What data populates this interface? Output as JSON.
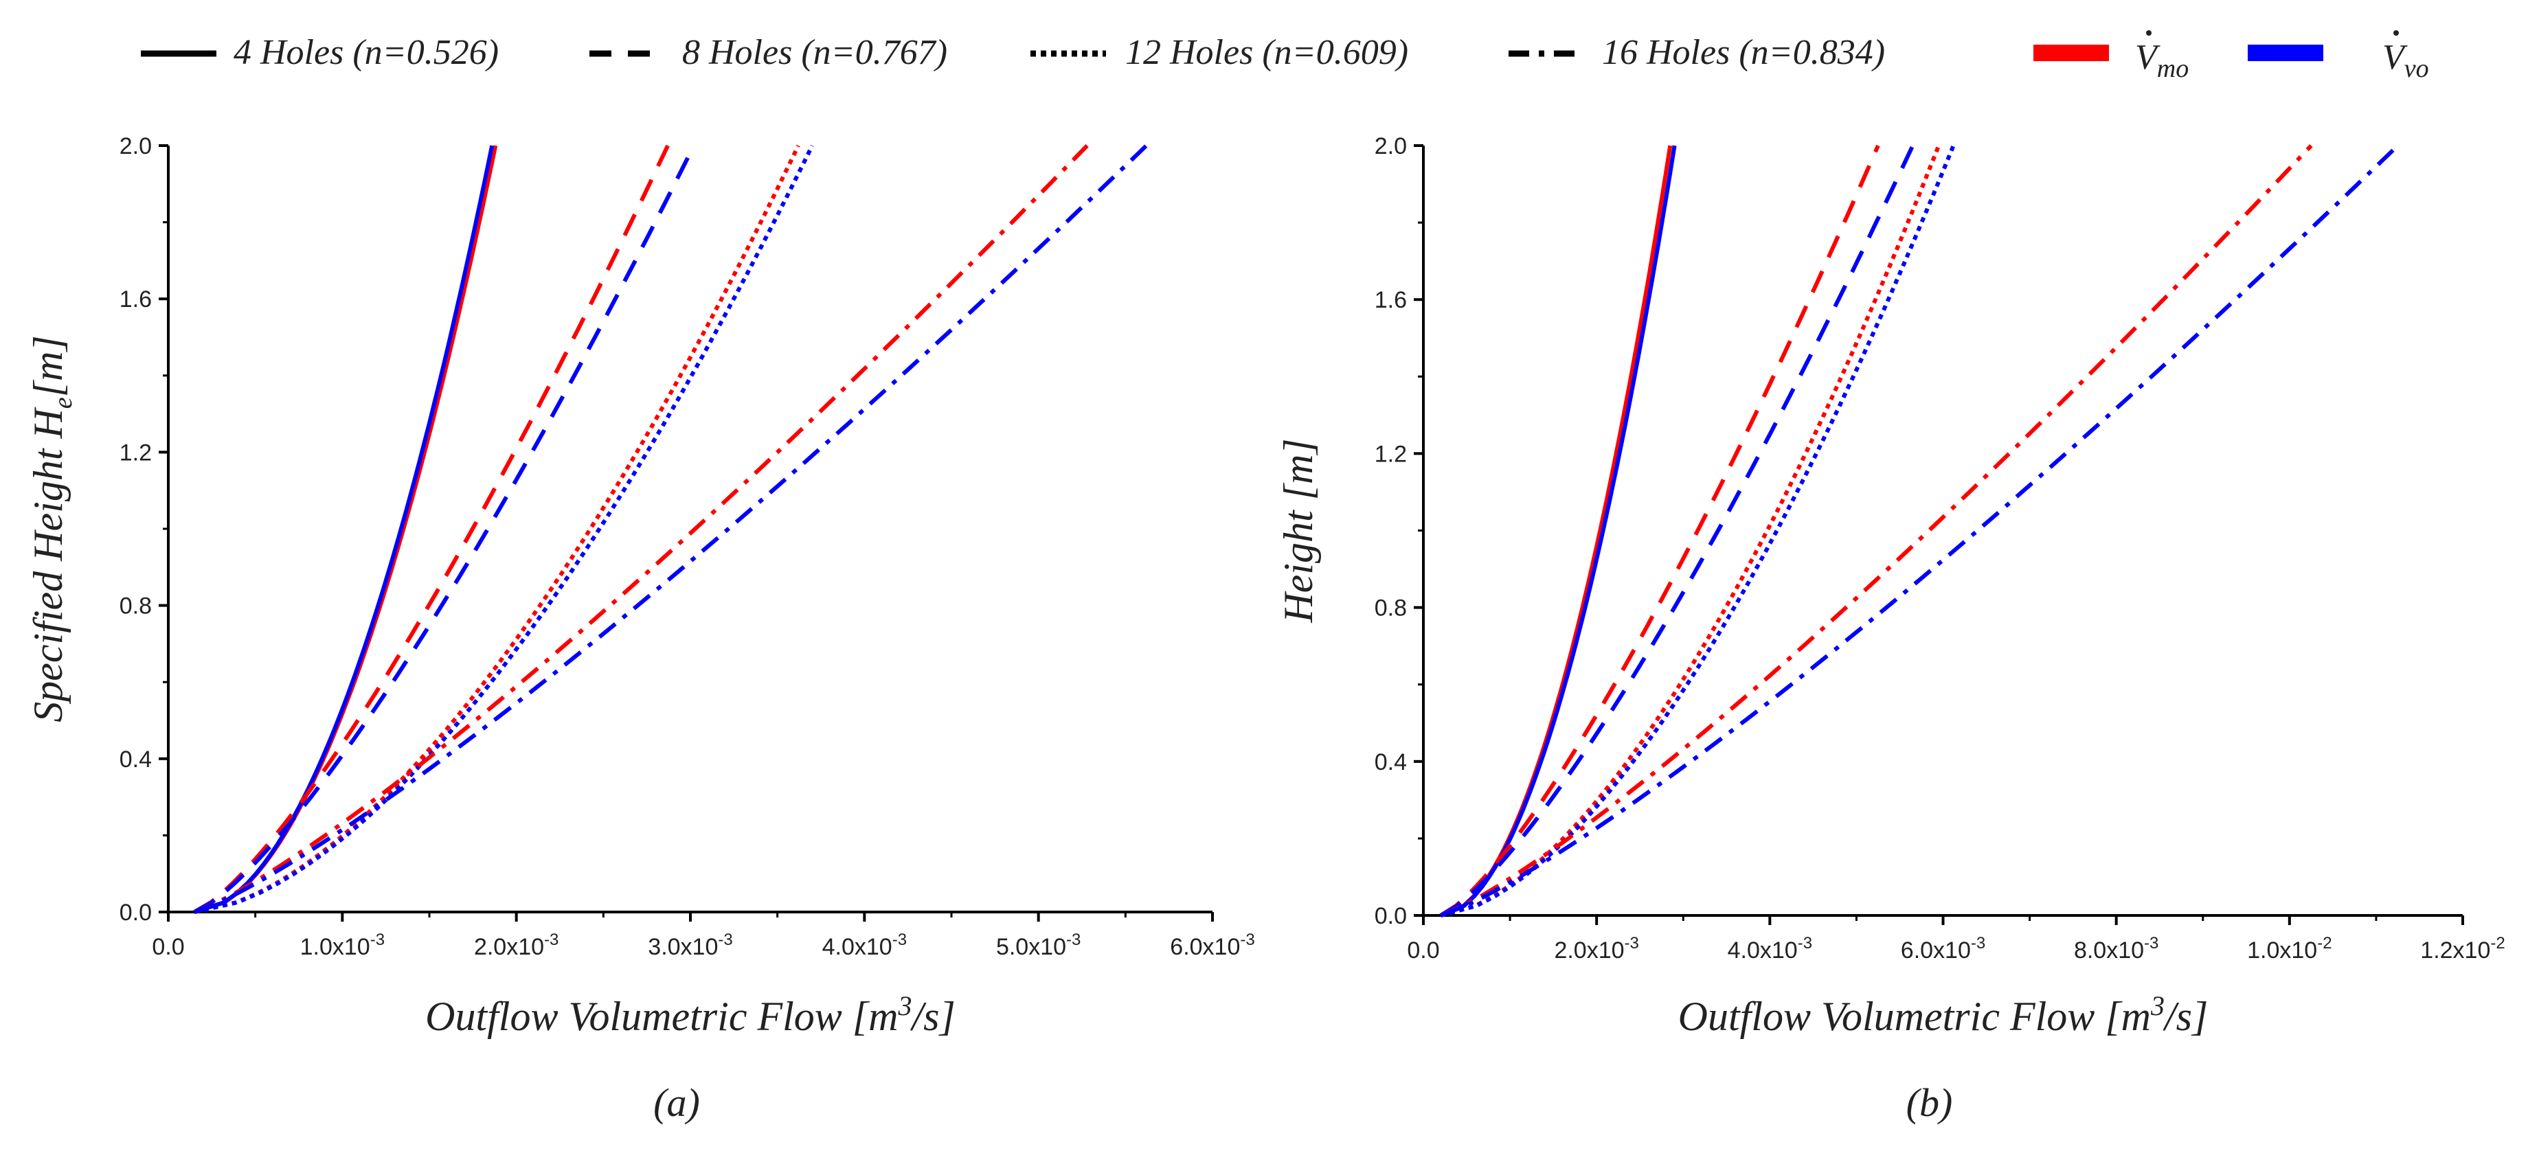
{
  "legend": {
    "line_styles": [
      {
        "label": "4 Holes (n=0.526)",
        "dash": "solid"
      },
      {
        "label": "8 Holes (n=0.767)",
        "dash": "dashed"
      },
      {
        "label": "12 Holes (n=0.609)",
        "dash": "dotted"
      },
      {
        "label": "16 Holes (n=0.834)",
        "dash": "dashdot"
      }
    ],
    "colors": [
      {
        "symbol": "V",
        "subscript": "mo",
        "color": "#ff0000"
      },
      {
        "symbol": "V",
        "subscript": "vo",
        "color": "#0000ff"
      }
    ]
  },
  "chart_data": [
    {
      "type": "line",
      "panel": "(a)",
      "xlabel": "Outflow Volumetric Flow [m",
      "xlabel_sup": "3",
      "xlabel_tail": "/s]",
      "ylabel": "Specified Height H",
      "ylabel_sub": "e",
      "ylabel_tail": "[m]",
      "xlim": [
        0,
        0.006
      ],
      "ylim": [
        0,
        2.0
      ],
      "xticks": [
        0,
        0.001,
        0.002,
        0.003,
        0.004,
        0.005,
        0.006
      ],
      "xtick_labels": [
        {
          "base": "0.0",
          "exp": ""
        },
        {
          "base": "1.0x10",
          "exp": "-3"
        },
        {
          "base": "2.0x10",
          "exp": "-3"
        },
        {
          "base": "3.0x10",
          "exp": "-3"
        },
        {
          "base": "4.0x10",
          "exp": "-3"
        },
        {
          "base": "5.0x10",
          "exp": "-3"
        },
        {
          "base": "6.0x10",
          "exp": "-3"
        }
      ],
      "yticks": [
        0.0,
        0.4,
        0.8,
        1.2,
        1.6,
        2.0
      ],
      "ytick_labels": [
        "0.0",
        "0.4",
        "0.8",
        "1.2",
        "1.6",
        "2.0"
      ],
      "series": [
        {
          "name": "4 Holes V_mo",
          "dash": "solid",
          "color": "#ff0000",
          "x0": 0.00015,
          "x_end": 0.00188,
          "n": 0.526
        },
        {
          "name": "4 Holes V_vo",
          "dash": "solid",
          "color": "#0000ff",
          "x0": 0.00015,
          "x_end": 0.00186,
          "n": 0.526
        },
        {
          "name": "8 Holes V_mo",
          "dash": "dashed",
          "color": "#ff0000",
          "x0": 0.00015,
          "x_end": 0.00287,
          "n": 0.767
        },
        {
          "name": "8 Holes V_vo",
          "dash": "dashed",
          "color": "#0000ff",
          "x0": 0.00015,
          "x_end": 0.00302,
          "n": 0.767
        },
        {
          "name": "12 Holes V_mo",
          "dash": "dotted",
          "color": "#ff0000",
          "x0": 0.00015,
          "x_end": 0.00362,
          "n": 0.609
        },
        {
          "name": "12 Holes V_vo",
          "dash": "dotted",
          "color": "#0000ff",
          "x0": 0.00015,
          "x_end": 0.0037,
          "n": 0.609
        },
        {
          "name": "16 Holes V_mo",
          "dash": "dashdot",
          "color": "#ff0000",
          "x0": 0.00015,
          "x_end": 0.00528,
          "n": 0.834
        },
        {
          "name": "16 Holes V_vo",
          "dash": "dashdot",
          "color": "#0000ff",
          "x0": 0.00015,
          "x_end": 0.00562,
          "n": 0.834
        }
      ]
    },
    {
      "type": "line",
      "panel": "(b)",
      "xlabel": "Outflow Volumetric Flow [m",
      "xlabel_sup": "3",
      "xlabel_tail": "/s]",
      "ylabel": "Height [m]",
      "ylabel_sub": "",
      "ylabel_tail": "",
      "xlim": [
        0,
        0.012
      ],
      "ylim": [
        0,
        2.0
      ],
      "xticks": [
        0,
        0.002,
        0.004,
        0.006,
        0.008,
        0.01,
        0.012
      ],
      "xtick_labels": [
        {
          "base": "0.0",
          "exp": ""
        },
        {
          "base": "2.0x10",
          "exp": "-3"
        },
        {
          "base": "4.0x10",
          "exp": "-3"
        },
        {
          "base": "6.0x10",
          "exp": "-3"
        },
        {
          "base": "8.0x10",
          "exp": "-3"
        },
        {
          "base": "1.0x10",
          "exp": "-2"
        },
        {
          "base": "1.2x10",
          "exp": "-2"
        }
      ],
      "yticks": [
        0.0,
        0.4,
        0.8,
        1.2,
        1.6,
        2.0
      ],
      "ytick_labels": [
        "0.0",
        "0.4",
        "0.8",
        "1.2",
        "1.6",
        "2.0"
      ],
      "series": [
        {
          "name": "4 Holes V_mo",
          "dash": "solid",
          "color": "#ff0000",
          "x0": 0.0002,
          "x_end": 0.00285,
          "n": 0.526
        },
        {
          "name": "4 Holes V_vo",
          "dash": "solid",
          "color": "#0000ff",
          "x0": 0.0002,
          "x_end": 0.0029,
          "n": 0.526
        },
        {
          "name": "8 Holes V_mo",
          "dash": "dashed",
          "color": "#ff0000",
          "x0": 0.0002,
          "x_end": 0.00525,
          "n": 0.767
        },
        {
          "name": "8 Holes V_vo",
          "dash": "dashed",
          "color": "#0000ff",
          "x0": 0.0002,
          "x_end": 0.00565,
          "n": 0.767
        },
        {
          "name": "12 Holes V_mo",
          "dash": "dotted",
          "color": "#ff0000",
          "x0": 0.0002,
          "x_end": 0.00595,
          "n": 0.609
        },
        {
          "name": "12 Holes V_vo",
          "dash": "dotted",
          "color": "#0000ff",
          "x0": 0.0002,
          "x_end": 0.00612,
          "n": 0.609
        },
        {
          "name": "16 Holes V_mo",
          "dash": "dashdot",
          "color": "#ff0000",
          "x0": 0.0002,
          "x_end": 0.01025,
          "n": 0.834
        },
        {
          "name": "16 Holes V_vo",
          "dash": "dashdot",
          "color": "#0000ff",
          "x0": 0.0002,
          "x_end": 0.01125,
          "n": 0.834
        }
      ]
    }
  ]
}
